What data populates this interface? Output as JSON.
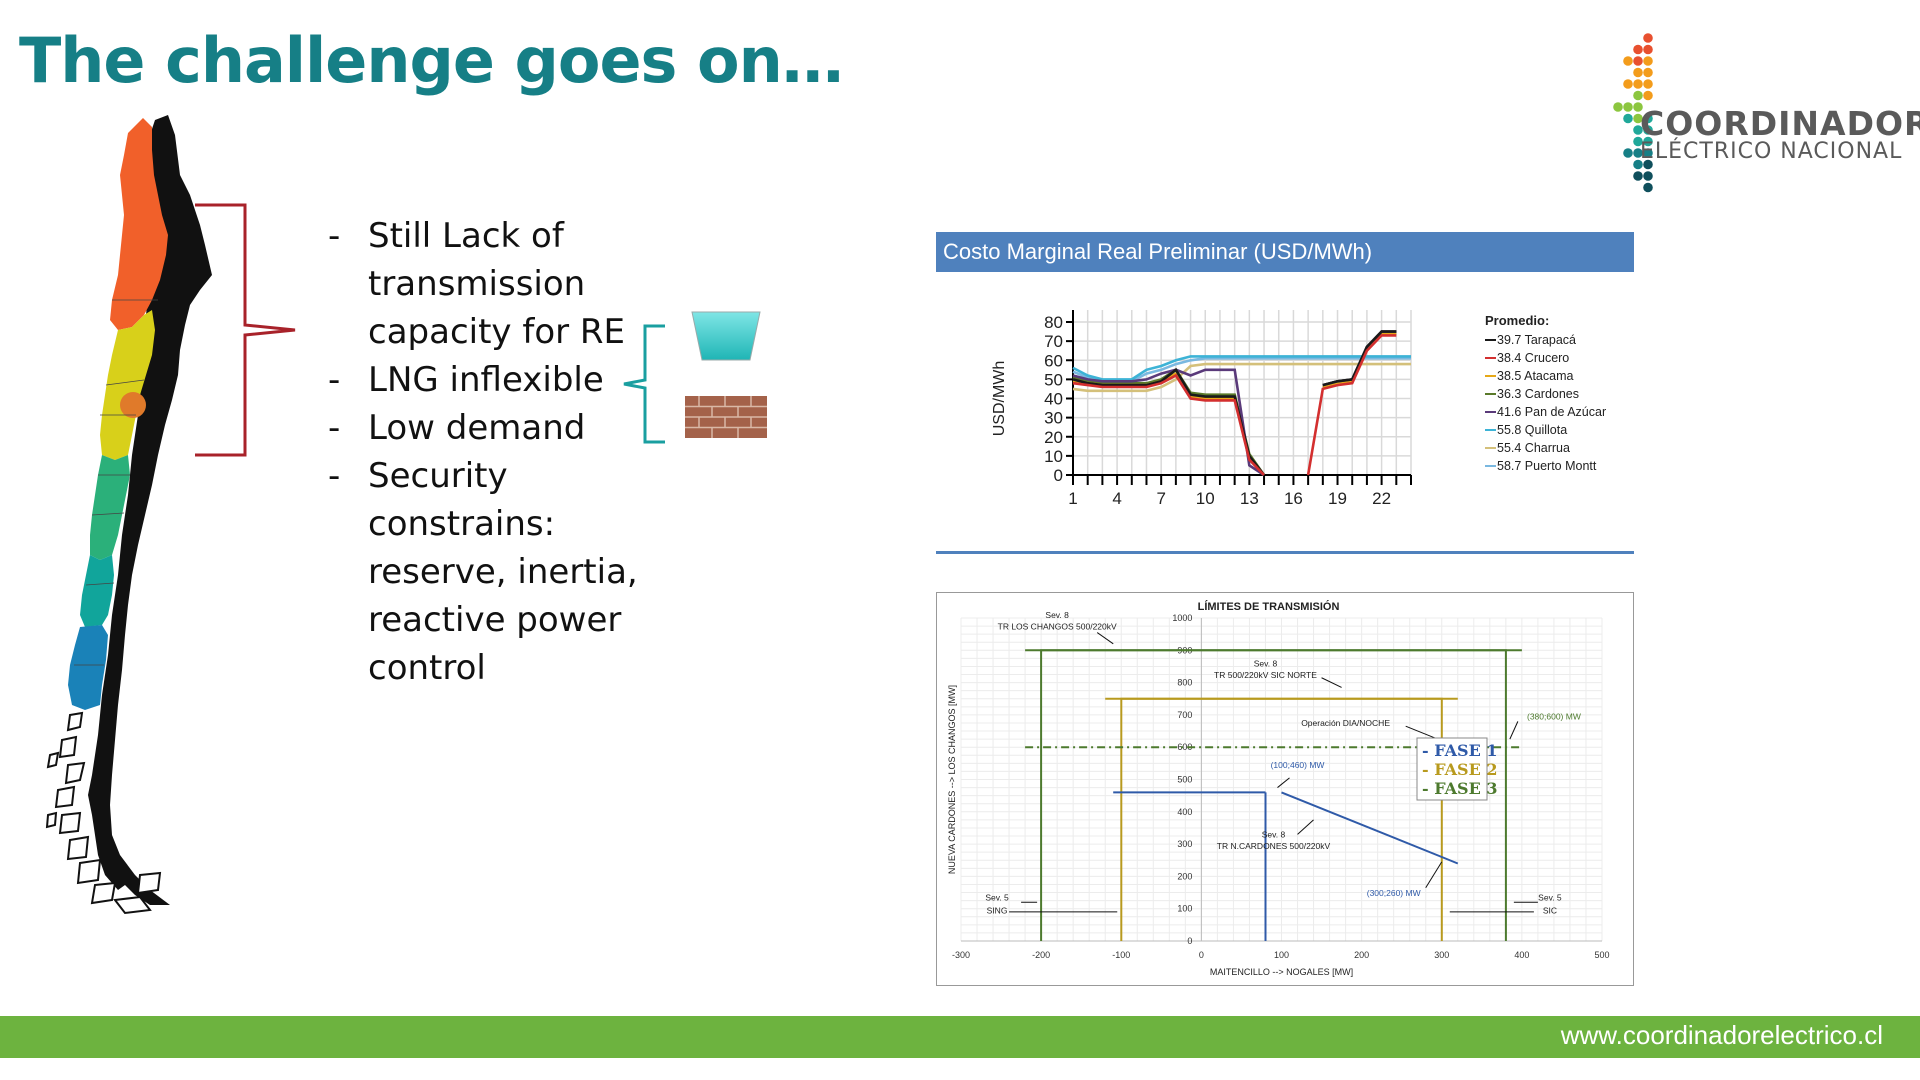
{
  "slide": {
    "title": "The challenge goes on…",
    "footer_url": "www.coordinadorelectrico.cl"
  },
  "logo": {
    "line1": "COORDINADOR",
    "line2": "ELÉCTRICO NACIONAL",
    "colors": [
      "#e8502f",
      "#f39c1b",
      "#8cc63f",
      "#20a89a",
      "#167f86",
      "#0f4f5c"
    ]
  },
  "bullets": [
    {
      "dash": "-",
      "text": "Still Lack of transmission capacity for RE"
    },
    {
      "dash": "-",
      "text": "LNG inflexible"
    },
    {
      "dash": "-",
      "text": "Low demand"
    },
    {
      "dash": "-",
      "text": "Security constrains: reserve, inertia, reactive power control"
    }
  ],
  "icons": {
    "lng": "lng-tank-icon",
    "wall": "brick-wall-icon"
  },
  "map_colors": {
    "north": "#f1602a",
    "center": "#d8d01a",
    "dot": "#e07a2a",
    "south1": "#2bb07a",
    "south2": "#11a59b",
    "south3": "#1a82b8",
    "bracket": "#a8222a",
    "small_bracket": "#1a9fa0"
  },
  "chart_data": [
    {
      "type": "line",
      "title": "Costo Marginal Real Preliminar (USD/MWh)",
      "ylabel": "USD/MWh",
      "xlabel": "",
      "ylim": [
        0,
        80
      ],
      "yticks": [
        0,
        10,
        20,
        30,
        40,
        50,
        60,
        70,
        80
      ],
      "xlim": [
        1,
        24
      ],
      "xticks": [
        1,
        4,
        7,
        10,
        13,
        16,
        19,
        22
      ],
      "legend_title": "Promedio:",
      "legend_position": "right",
      "series": [
        {
          "name": "39.7 Tarapacá",
          "color": "#1a1a1a",
          "x": [
            1,
            2,
            3,
            4,
            5,
            6,
            7,
            8,
            9,
            10,
            11,
            12,
            13,
            14,
            15,
            16,
            17,
            18,
            19,
            20,
            21,
            22,
            23,
            24
          ],
          "y": [
            50,
            48,
            47,
            47,
            47,
            47,
            49,
            55,
            42,
            41,
            41,
            41,
            10,
            0,
            null,
            null,
            null,
            47,
            49,
            50,
            67,
            75,
            75,
            null
          ]
        },
        {
          "name": "38.4 Crucero",
          "color": "#d32f2f",
          "x": [
            1,
            2,
            3,
            4,
            5,
            6,
            7,
            8,
            9,
            10,
            11,
            12,
            13,
            14,
            15,
            16,
            17,
            18,
            19,
            20,
            21,
            22,
            23,
            24
          ],
          "y": [
            48,
            47,
            46,
            46,
            46,
            46,
            48,
            52,
            40,
            39,
            39,
            39,
            8,
            0,
            null,
            null,
            0,
            45,
            47,
            48,
            65,
            73,
            73,
            null
          ]
        },
        {
          "name": "38.5 Atacama",
          "color": "#e6a817",
          "x": [
            1,
            2,
            3,
            4,
            5,
            6,
            7,
            8,
            9,
            10,
            11,
            12,
            13,
            14,
            15,
            16,
            17,
            18,
            19,
            20,
            21,
            22,
            23,
            24
          ],
          "y": [
            49,
            48,
            47,
            47,
            47,
            47,
            49,
            53,
            41,
            40,
            40,
            40,
            9,
            0,
            null,
            null,
            null,
            46,
            48,
            49,
            66,
            74,
            74,
            null
          ]
        },
        {
          "name": "36.3 Cardones",
          "color": "#5a7a2a",
          "x": [
            1,
            2,
            3,
            4,
            5,
            6,
            7,
            8,
            9,
            10,
            11,
            12,
            13,
            14,
            15,
            16,
            17,
            18,
            19,
            20,
            21,
            22,
            23,
            24
          ],
          "y": [
            51,
            49,
            48,
            48,
            48,
            48,
            50,
            55,
            43,
            42,
            42,
            42,
            11,
            0,
            null,
            null,
            null,
            47,
            49,
            50,
            67,
            75,
            75,
            null
          ]
        },
        {
          "name": "41.6 Pan de Azúcar",
          "color": "#5a3a7a",
          "x": [
            1,
            2,
            3,
            4,
            5,
            6,
            7,
            8,
            9,
            10,
            11,
            12,
            13,
            14,
            15,
            16,
            17,
            18,
            19,
            20,
            21,
            22,
            23,
            24
          ],
          "y": [
            52,
            50,
            49,
            49,
            49,
            50,
            53,
            55,
            52,
            55,
            55,
            55,
            5,
            0,
            null,
            null,
            null,
            47,
            49,
            50,
            67,
            75,
            75,
            null
          ]
        },
        {
          "name": "55.8 Quillota",
          "color": "#3db3d6",
          "x": [
            1,
            2,
            3,
            4,
            5,
            6,
            7,
            8,
            9,
            10,
            11,
            12,
            13,
            14,
            15,
            16,
            17,
            18,
            19,
            20,
            21,
            22,
            23,
            24
          ],
          "y": [
            56,
            52,
            50,
            50,
            50,
            55,
            57,
            60,
            62,
            62,
            62,
            62,
            62,
            62,
            62,
            62,
            62,
            62,
            62,
            62,
            62,
            62,
            62,
            62
          ]
        },
        {
          "name": "55.4 Charrua",
          "color": "#d4c07a",
          "x": [
            1,
            2,
            3,
            4,
            5,
            6,
            7,
            8,
            9,
            10,
            11,
            12,
            13,
            14,
            15,
            16,
            17,
            18,
            19,
            20,
            21,
            22,
            23,
            24
          ],
          "y": [
            45,
            44,
            44,
            44,
            44,
            44,
            46,
            50,
            57,
            58,
            58,
            58,
            58,
            58,
            58,
            58,
            58,
            58,
            58,
            58,
            58,
            58,
            58,
            58
          ]
        },
        {
          "name": "58.7 Puerto Montt",
          "color": "#7ab8e0",
          "x": [
            1,
            2,
            3,
            4,
            5,
            6,
            7,
            8,
            9,
            10,
            11,
            12,
            13,
            14,
            15,
            16,
            17,
            18,
            19,
            20,
            21,
            22,
            23,
            24
          ],
          "y": [
            54,
            51,
            49,
            49,
            49,
            53,
            55,
            58,
            60,
            61,
            61,
            61,
            61,
            61,
            61,
            61,
            61,
            61,
            61,
            61,
            61,
            61,
            61,
            61
          ]
        }
      ]
    },
    {
      "type": "line",
      "title": "LÍMITES DE TRANSMISIÓN",
      "xlabel": "MAITENCILLO --> NOGALES [MW]",
      "ylabel": "NUEVA CARDONES --> LOS CHANGOS [MW]",
      "xlim": [
        -300,
        500
      ],
      "ylim": [
        0,
        1000
      ],
      "xticks": [
        -300,
        -200,
        -100,
        0,
        100,
        200,
        300,
        400,
        500
      ],
      "yticks": [
        0,
        100,
        200,
        300,
        400,
        500,
        600,
        700,
        800,
        900,
        1000
      ],
      "legend_position": "right",
      "legend": [
        {
          "label": "- FASE 1",
          "color": "#2f5aa8"
        },
        {
          "label": "- FASE 2",
          "color": "#b89a1e"
        },
        {
          "label": "- FASE 3",
          "color": "#4d7a2e"
        }
      ],
      "series": [
        {
          "name": "FASE 3",
          "color": "#4d7a2e",
          "style": "solid",
          "segments": [
            [
              [
                -200,
                0
              ],
              [
                -200,
                900
              ],
              [
                380,
                900
              ],
              [
                380,
                0
              ]
            ],
            [
              [
                -220,
                900
              ],
              [
                400,
                900
              ]
            ]
          ]
        },
        {
          "name": "FASE 2",
          "color": "#b89a1e",
          "style": "solid",
          "segments": [
            [
              [
                -100,
                0
              ],
              [
                -100,
                750
              ],
              [
                300,
                750
              ],
              [
                300,
                0
              ]
            ],
            [
              [
                -120,
                750
              ],
              [
                320,
                750
              ]
            ]
          ]
        },
        {
          "name": "FASE 1",
          "color": "#2f5aa8",
          "style": "solid",
          "segments": [
            [
              [
                -110,
                460
              ],
              [
                80,
                460
              ]
            ],
            [
              [
                80,
                460
              ],
              [
                80,
                0
              ]
            ],
            [
              [
                100,
                460
              ],
              [
                300,
                260
              ],
              [
                320,
                240
              ]
            ]
          ]
        },
        {
          "name": "Operación DIA/NOCHE",
          "color": "#4d7a2e",
          "style": "dashdot",
          "segments": [
            [
              [
                -220,
                600
              ],
              [
                400,
                600
              ]
            ]
          ]
        }
      ],
      "annotations": [
        {
          "text": "Sev. 8",
          "x": -180,
          "y": 1000
        },
        {
          "text": "TR LOS CHANGOS 500/220kV",
          "x": -180,
          "y": 965
        },
        {
          "text": "Sev. 8",
          "x": 80,
          "y": 850
        },
        {
          "text": "TR 500/220kV SIC NORTE",
          "x": 80,
          "y": 815
        },
        {
          "text": "Operación DIA/NOCHE",
          "x": 180,
          "y": 665
        },
        {
          "text": "(380;600) MW",
          "x": 440,
          "y": 685
        },
        {
          "text": "(100;460) MW",
          "x": 120,
          "y": 535
        },
        {
          "text": "Sev. 8",
          "x": 90,
          "y": 320
        },
        {
          "text": "TR N.CARDONES 500/220kV",
          "x": 90,
          "y": 285
        },
        {
          "text": "(300;260) MW",
          "x": 240,
          "y": 140
        },
        {
          "text": "Sev. 5",
          "x": -255,
          "y": 125
        },
        {
          "text": "SING",
          "x": -255,
          "y": 85
        },
        {
          "text": "Sev. 5",
          "x": 435,
          "y": 125
        },
        {
          "text": "SIC",
          "x": 435,
          "y": 85
        }
      ]
    }
  ]
}
